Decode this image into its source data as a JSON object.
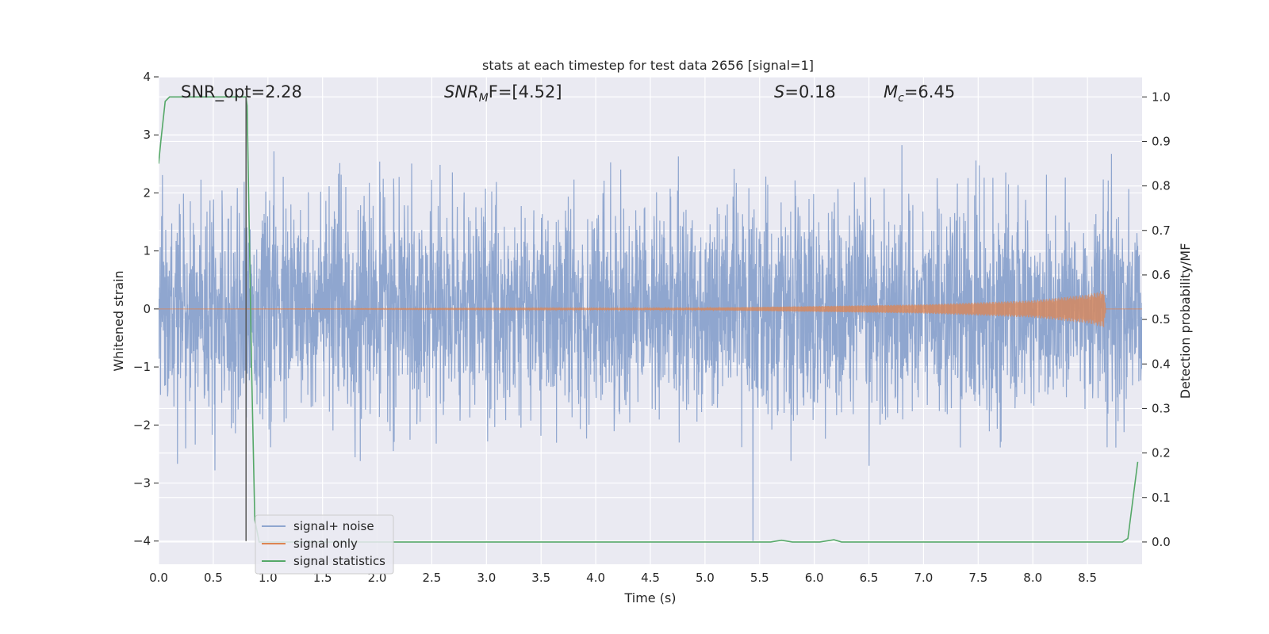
{
  "chart_data": {
    "type": "line",
    "title": "stats at each timestep for test data 2656 [signal=1]",
    "xlabel": "Time (s)",
    "ylabel": "Whitened strain",
    "y2label": "Detection probability/MF",
    "xlim": [
      0.0,
      9.0
    ],
    "ylim": [
      -4.4,
      4.0
    ],
    "y2lim": [
      -0.05,
      1.045
    ],
    "x_ticks": [
      "0.0",
      "0.5",
      "1.0",
      "1.5",
      "2.0",
      "2.5",
      "3.0",
      "3.5",
      "4.0",
      "4.5",
      "5.0",
      "5.5",
      "6.0",
      "6.5",
      "7.0",
      "7.5",
      "8.0",
      "8.5"
    ],
    "y_ticks": [
      "4",
      "3",
      "2",
      "1",
      "0",
      "−1",
      "−2",
      "−3",
      "−4"
    ],
    "y2_ticks": [
      "1.0",
      "0.9",
      "0.8",
      "0.7",
      "0.6",
      "0.5",
      "0.4",
      "0.3",
      "0.2",
      "0.1",
      "0.0"
    ],
    "grid": true,
    "legend_position": "lower-left",
    "annotations": {
      "snr_opt": "SNR_opt=2.28",
      "snr_mf_main": "SNR",
      "snr_mf_sub": "M",
      "snr_mf_rest": "F=[4.52]",
      "s_var": "S",
      "s_rest": "=0.18",
      "mc_main": "M",
      "mc_sub": "c",
      "mc_rest": "=6.45"
    },
    "marker_line_x": 0.8,
    "series": [
      {
        "name": "signal+ noise",
        "color": "#8fa6cf",
        "summary": "dense noise band between about -1.7 and 1.4 with spikes up to 3.6 and down to -4.0",
        "envelope_core": [
          -1.7,
          1.35
        ],
        "extremes": [
          -4.0,
          3.65
        ]
      },
      {
        "name": "signal only",
        "color": "#dd8452",
        "summary": "chirp near 0, amplitude growing toward merger at about 8.65 s",
        "points": [
          [
            0.0,
            0.0
          ],
          [
            5.0,
            0.02
          ],
          [
            7.0,
            0.08
          ],
          [
            8.0,
            0.15
          ],
          [
            8.5,
            0.25
          ],
          [
            8.65,
            0.32
          ],
          [
            8.67,
            0.0
          ],
          [
            9.0,
            0.0
          ]
        ]
      },
      {
        "name": "signal statistics",
        "color": "#55a868",
        "axis": "right",
        "points": [
          [
            0.0,
            0.85
          ],
          [
            0.02,
            0.9
          ],
          [
            0.06,
            0.99
          ],
          [
            0.1,
            1.0
          ],
          [
            0.2,
            1.0
          ],
          [
            0.4,
            1.0
          ],
          [
            0.6,
            1.0
          ],
          [
            0.8,
            1.0
          ],
          [
            0.81,
            0.98
          ],
          [
            0.85,
            0.4
          ],
          [
            0.88,
            0.05
          ],
          [
            0.92,
            0.0
          ],
          [
            1.5,
            0.0
          ],
          [
            3.0,
            0.0
          ],
          [
            5.6,
            0.0
          ],
          [
            5.7,
            0.004
          ],
          [
            5.8,
            0.0
          ],
          [
            6.05,
            0.0
          ],
          [
            6.18,
            0.005
          ],
          [
            6.25,
            0.0
          ],
          [
            7.1,
            0.0
          ],
          [
            8.5,
            0.0
          ],
          [
            8.82,
            0.0
          ],
          [
            8.87,
            0.008
          ],
          [
            8.96,
            0.18
          ]
        ]
      }
    ]
  }
}
